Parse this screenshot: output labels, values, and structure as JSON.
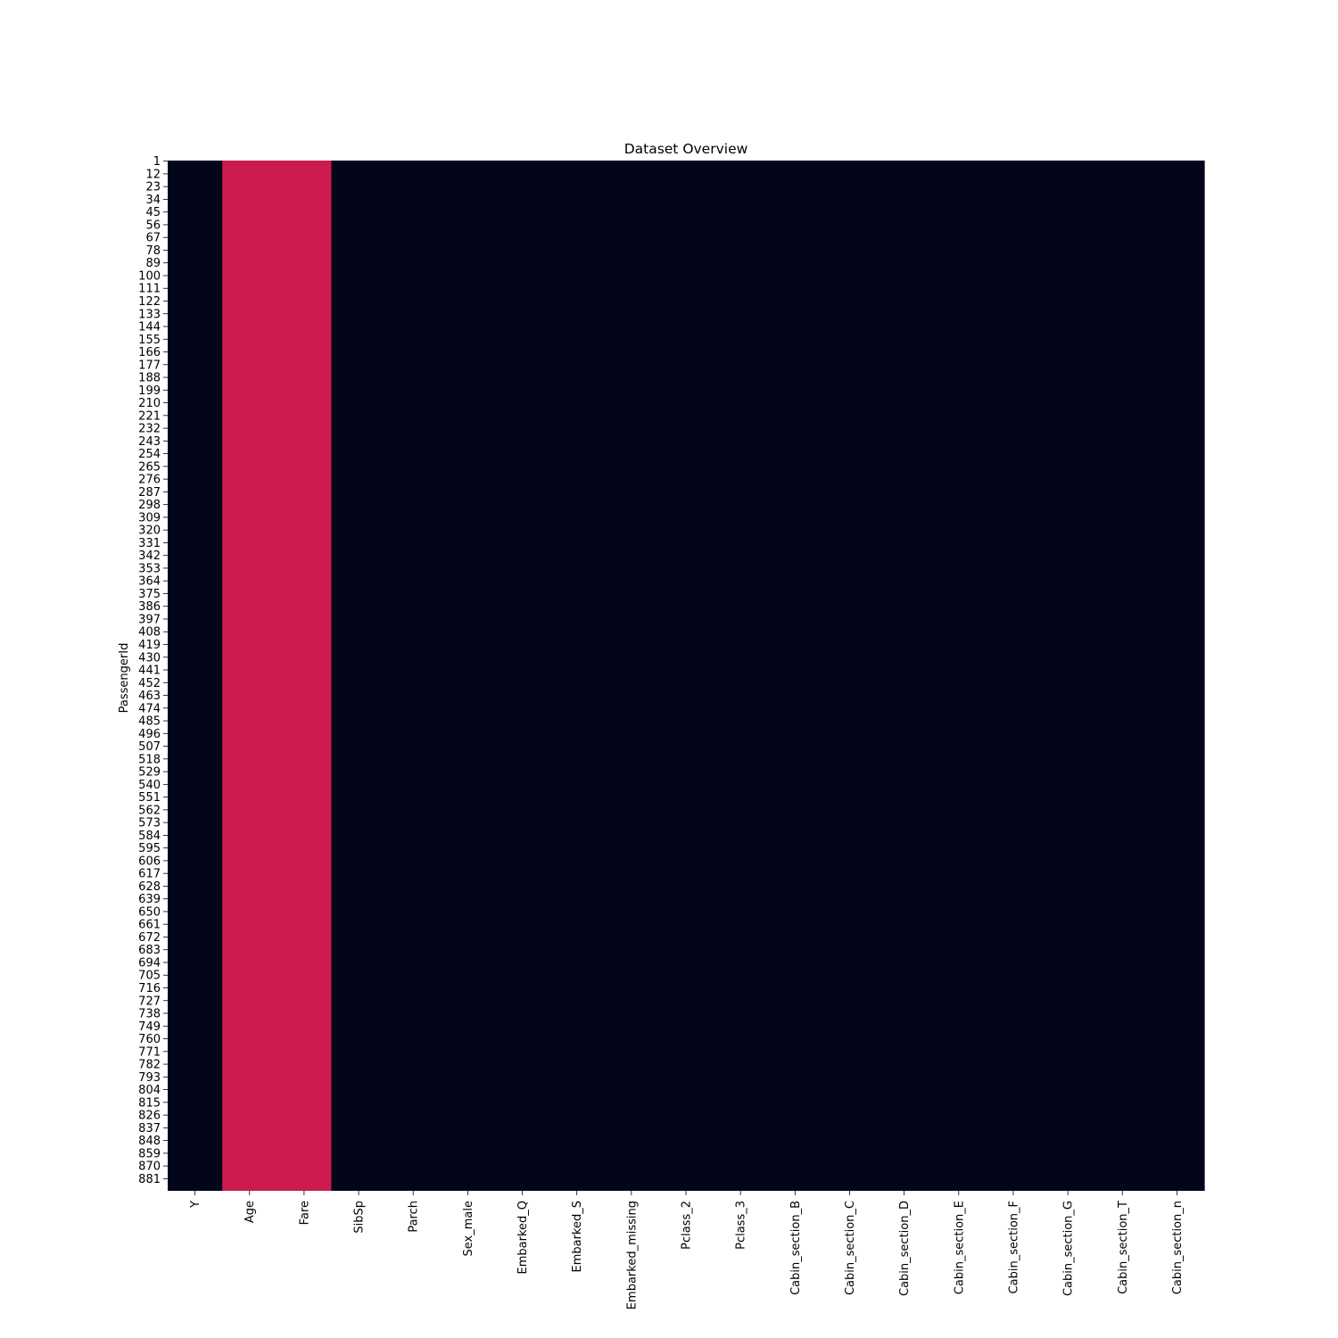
{
  "chart_data": {
    "type": "heatmap",
    "title": "Dataset Overview",
    "ylabel": "PassengerId",
    "xlabel": "",
    "columns": [
      "Y",
      "Age",
      "Fare",
      "SibSp",
      "Parch",
      "Sex_male",
      "Embarked_Q",
      "Embarked_S",
      "Embarked_missing",
      "Pclass_2",
      "Pclass_3",
      "Cabin_section_B",
      "Cabin_section_C",
      "Cabin_section_D",
      "Cabin_section_E",
      "Cabin_section_F",
      "Cabin_section_G",
      "Cabin_section_T",
      "Cabin_section_n"
    ],
    "row_tick_labels": [
      "1",
      "12",
      "23",
      "34",
      "45",
      "56",
      "67",
      "78",
      "89",
      "100",
      "111",
      "122",
      "133",
      "144",
      "155",
      "166",
      "177",
      "188",
      "199",
      "210",
      "221",
      "232",
      "243",
      "254",
      "265",
      "276",
      "287",
      "298",
      "309",
      "320",
      "331",
      "342",
      "353",
      "364",
      "375",
      "386",
      "397",
      "408",
      "419",
      "430",
      "441",
      "452",
      "463",
      "474",
      "485",
      "496",
      "507",
      "518",
      "529",
      "540",
      "551",
      "562",
      "573",
      "584",
      "595",
      "606",
      "617",
      "628",
      "639",
      "650",
      "661",
      "672",
      "683",
      "694",
      "705",
      "716",
      "727",
      "738",
      "749",
      "760",
      "771",
      "782",
      "793",
      "804",
      "815",
      "826",
      "837",
      "848",
      "859",
      "870",
      "881"
    ],
    "row_count": 891,
    "column_levels": [
      0,
      1,
      1,
      0,
      0,
      0,
      0,
      0,
      0,
      0,
      0,
      0,
      0,
      0,
      0,
      0,
      0,
      0,
      0
    ],
    "colors": {
      "low": "#03051a",
      "high": "#cb1b4f"
    },
    "colorbar": false,
    "grid": false
  }
}
